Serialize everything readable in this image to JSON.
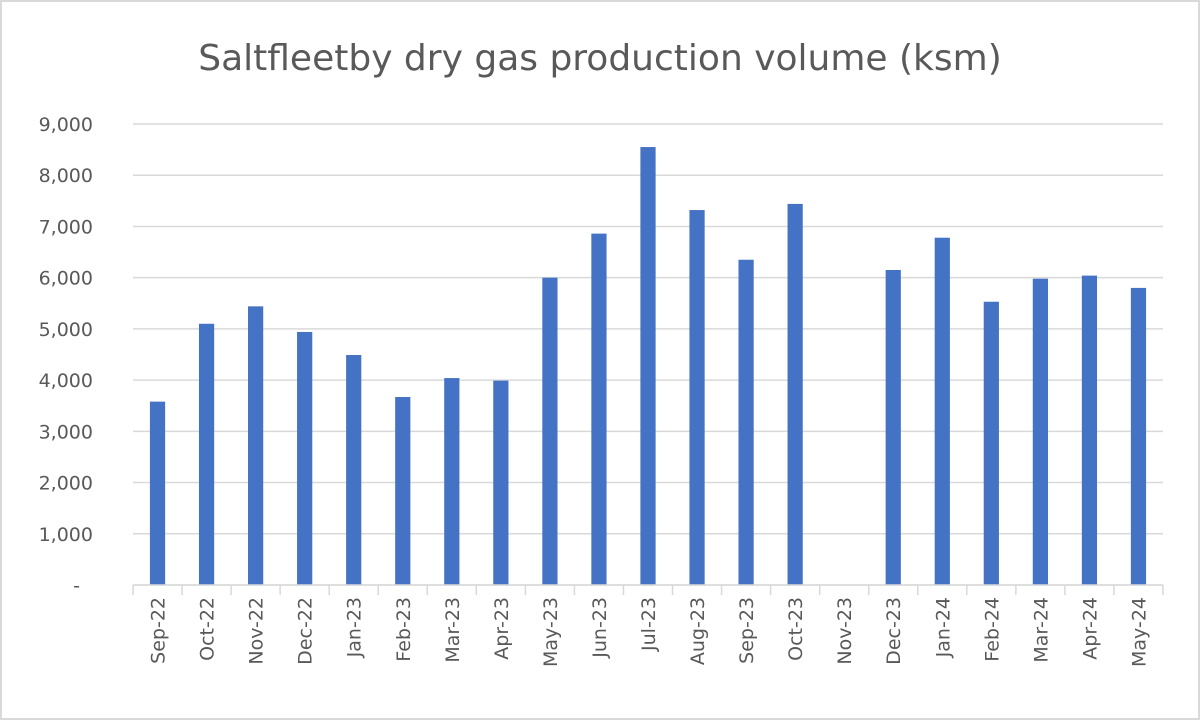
{
  "chart_data": {
    "type": "bar",
    "title": "Saltfleetby dry gas production volume (ksm)",
    "xlabel": "",
    "ylabel": "",
    "ylim": [
      0,
      9000
    ],
    "yticks": [
      0,
      1000,
      2000,
      3000,
      4000,
      5000,
      6000,
      7000,
      8000,
      9000
    ],
    "ytick_labels": [
      "-",
      "1,000",
      "2,000",
      "3,000",
      "4,000",
      "5,000",
      "6,000",
      "7,000",
      "8,000",
      "9,000"
    ],
    "grid": true,
    "legend": "none",
    "bar_color": "#4472c4",
    "categories": [
      "Sep-22",
      "Oct-22",
      "Nov-22",
      "Dec-22",
      "Jan-23",
      "Feb-23",
      "Mar-23",
      "Apr-23",
      "May-23",
      "Jun-23",
      "Jul-23",
      "Aug-23",
      "Sep-23",
      "Oct-23",
      "Nov-23",
      "Dec-23",
      "Jan-24",
      "Feb-24",
      "Mar-24",
      "Apr-24",
      "May-24"
    ],
    "values": [
      3580,
      5100,
      5440,
      4940,
      4490,
      3670,
      4040,
      3990,
      6000,
      6860,
      8550,
      7320,
      6350,
      7440,
      null,
      6150,
      6780,
      5530,
      5980,
      6040,
      5800
    ]
  }
}
